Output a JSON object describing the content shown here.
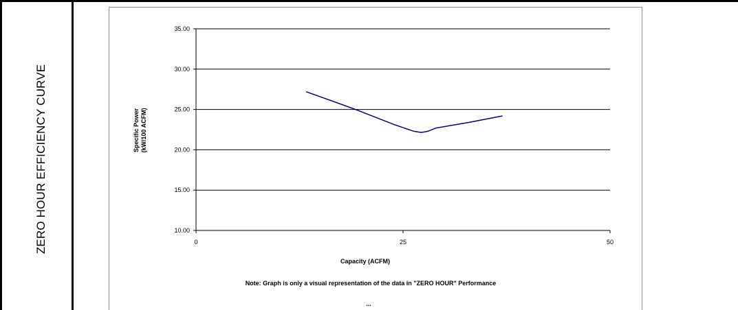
{
  "section_label": "ZERO HOUR EFFICIENCY CURVE",
  "colors": {
    "series_line": "#000080",
    "gridline": "#000000",
    "border": "#8c8c8c"
  },
  "chart_data": {
    "type": "line",
    "xlabel": "Capacity (ACFM)",
    "ylabel_line1": "Specific Power",
    "ylabel_line2": "(kW/100 ACFM)",
    "xlim": [
      0,
      50
    ],
    "ylim": [
      10,
      35
    ],
    "xticks": [
      0,
      25,
      50
    ],
    "yticks": [
      10,
      15,
      20,
      25,
      30,
      35
    ],
    "ytick_labels": [
      "10.00",
      "15.00",
      "20.00",
      "25.00",
      "30.00",
      "35.00"
    ],
    "grid": "horizontal",
    "note": "Note:  Graph is only a visual representation of the data in \"ZERO HOUR\" Performance",
    "footer_mark": "...",
    "series": [
      {
        "x": [
          13.3,
          19.0,
          24.0,
          26.3,
          27.2,
          28.0,
          29.0,
          33.0,
          37.0
        ],
        "y": [
          27.2,
          25.1,
          23.1,
          22.3,
          22.15,
          22.3,
          22.7,
          23.4,
          24.2
        ]
      }
    ]
  }
}
